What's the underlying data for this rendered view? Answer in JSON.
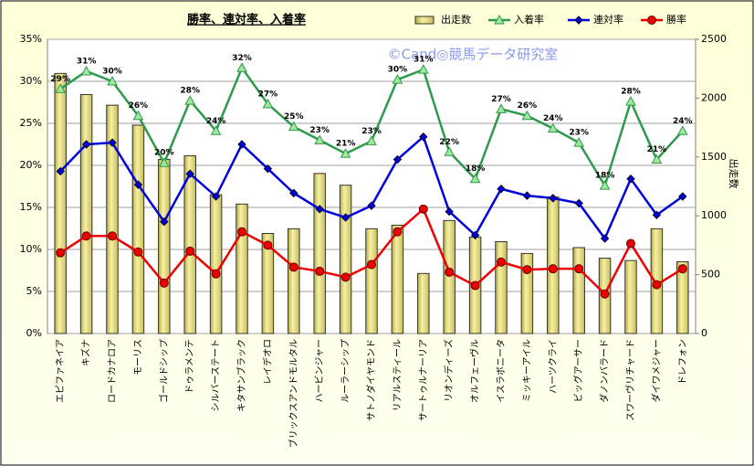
{
  "chart_data": {
    "type": "combo",
    "title": "勝率、連対率、入着率",
    "watermark": "©Cand◎競馬データ研究室",
    "y2label": "出走数",
    "categories": [
      "エピファネイア",
      "キズナ",
      "ロードカナロア",
      "モーリス",
      "ゴールドシップ",
      "ドゥラメンテ",
      "シルバーステート",
      "キタサンブラック",
      "レイデオロ",
      "ブリックスアンドモルタル",
      "ハービンジャー",
      "ルーラーシップ",
      "サトノダイヤモンド",
      "リアルスティール",
      "サートゥルナーリア",
      "リオンディーズ",
      "オルフェーヴル",
      "イスラボニータ",
      "ミッキーアイル",
      "ハーツクライ",
      "ビッグアーサー",
      "ダノンバラード",
      "スワーヴリチャード",
      "ダイワメジャー",
      "ドレフォン"
    ],
    "series": [
      {
        "name": "出走数",
        "type": "bar",
        "axis": "y2",
        "color": "#e8e08a",
        "values": [
          2210,
          2030,
          1940,
          1770,
          1480,
          1510,
          1180,
          1100,
          850,
          890,
          1360,
          1260,
          890,
          920,
          510,
          960,
          820,
          780,
          680,
          1160,
          730,
          640,
          620,
          890,
          610
        ]
      },
      {
        "name": "入着率",
        "type": "line",
        "marker": "triangle",
        "color": "#2e9a4a",
        "values": [
          29.1,
          31.2,
          30.0,
          25.9,
          20.3,
          27.7,
          24.1,
          31.6,
          27.3,
          24.6,
          23.0,
          21.4,
          22.9,
          30.2,
          31.4,
          21.6,
          18.4,
          26.7,
          25.9,
          24.4,
          22.7,
          17.6,
          27.6,
          20.7,
          24.1
        ],
        "value_labels": [
          "29%",
          "31%",
          "30%",
          "26%",
          "20%",
          "28%",
          "24%",
          "32%",
          "27%",
          "25%",
          "23%",
          "21%",
          "23%",
          "30%",
          "31%",
          "22%",
          "18%",
          "27%",
          "26%",
          "24%",
          "23%",
          "18%",
          "28%",
          "21%",
          "24%"
        ]
      },
      {
        "name": "連対率",
        "type": "line",
        "marker": "diamond",
        "color": "#0000dd",
        "values": [
          19.3,
          22.5,
          22.7,
          17.7,
          13.3,
          19.0,
          16.3,
          22.5,
          19.6,
          16.7,
          14.8,
          13.8,
          15.2,
          20.7,
          23.4,
          14.5,
          11.7,
          17.2,
          16.4,
          16.1,
          15.5,
          11.3,
          18.4,
          14.1,
          16.3
        ]
      },
      {
        "name": "勝率",
        "type": "line",
        "marker": "circle",
        "color": "#ee0000",
        "values": [
          9.6,
          11.6,
          11.6,
          9.7,
          6.0,
          9.8,
          7.1,
          12.1,
          10.5,
          7.9,
          7.4,
          6.7,
          8.2,
          12.1,
          14.8,
          7.3,
          5.7,
          8.5,
          7.6,
          7.7,
          7.7,
          4.7,
          10.7,
          5.8,
          7.7
        ]
      }
    ],
    "ylim": [
      0,
      35
    ],
    "yticks": [
      {
        "value": 0,
        "label": "0%"
      },
      {
        "value": 5,
        "label": "5%"
      },
      {
        "value": 10,
        "label": "10%"
      },
      {
        "value": 15,
        "label": "15%"
      },
      {
        "value": 20,
        "label": "20%"
      },
      {
        "value": 25,
        "label": "25%"
      },
      {
        "value": 30,
        "label": "30%"
      },
      {
        "value": 35,
        "label": "35%"
      }
    ],
    "y2lim": [
      0,
      2500
    ],
    "y2ticks": [
      0,
      500,
      1000,
      1500,
      2000,
      2500
    ],
    "grid": true
  }
}
